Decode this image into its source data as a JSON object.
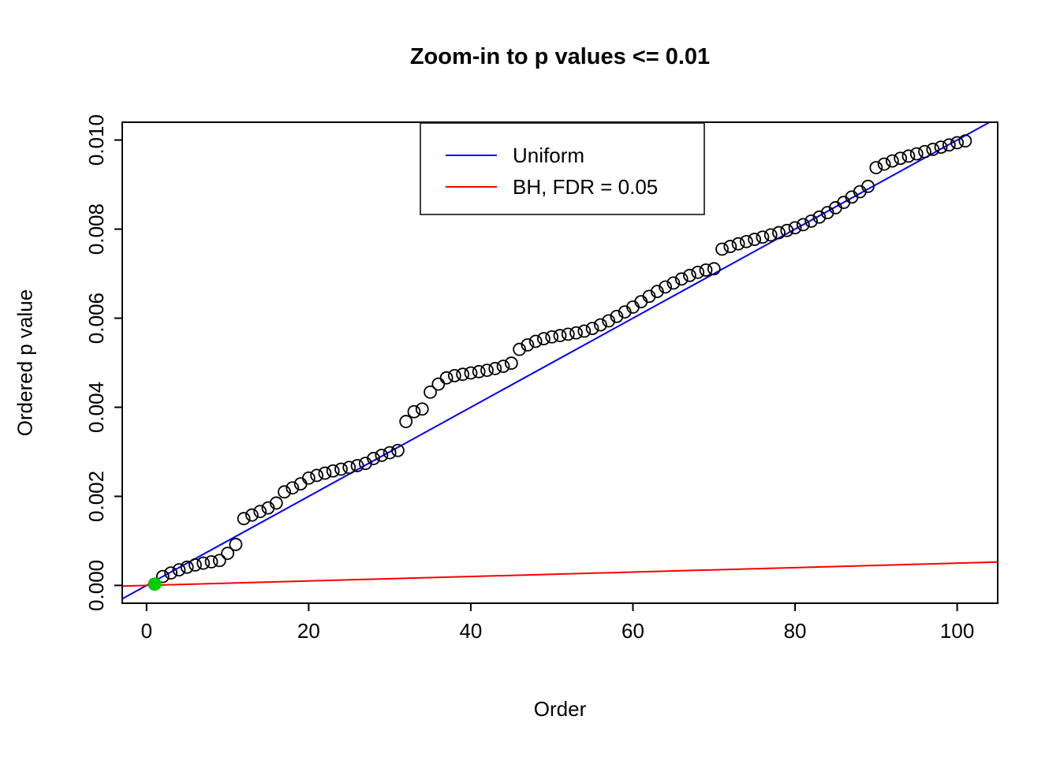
{
  "figure": {
    "background": "#FFFFFF"
  },
  "chart_data": {
    "type": "scatter",
    "title": "Zoom-in to p values <= 0.01",
    "xlabel": "Order",
    "ylabel": "Ordered p value",
    "xlim": [
      -3,
      105
    ],
    "ylim": [
      -0.0004,
      0.0104
    ],
    "grid": false,
    "x_ticks": {
      "values": [
        0,
        20,
        40,
        60,
        80,
        100
      ],
      "labels": [
        "0",
        "20",
        "40",
        "60",
        "80",
        "100"
      ]
    },
    "y_ticks": {
      "values": [
        0,
        0.002,
        0.004,
        0.006,
        0.008,
        0.01
      ],
      "labels": [
        "0.000",
        "0.002",
        "0.004",
        "0.006",
        "0.008",
        "0.010"
      ]
    },
    "series": [
      {
        "name": "ordered-p-values",
        "type": "scatter",
        "marker": "open-circle",
        "color": "#000000",
        "x": [
          1,
          2,
          3,
          4,
          5,
          6,
          7,
          8,
          9,
          10,
          11,
          12,
          13,
          14,
          15,
          16,
          17,
          18,
          19,
          20,
          21,
          22,
          23,
          24,
          25,
          26,
          27,
          28,
          29,
          30,
          31,
          32,
          33,
          34,
          35,
          36,
          37,
          38,
          39,
          40,
          41,
          42,
          43,
          44,
          45,
          46,
          47,
          48,
          49,
          50,
          51,
          52,
          53,
          54,
          55,
          56,
          57,
          58,
          59,
          60,
          61,
          62,
          63,
          64,
          65,
          66,
          67,
          68,
          69,
          70,
          71,
          72,
          73,
          74,
          75,
          76,
          77,
          78,
          79,
          80,
          81,
          82,
          83,
          84,
          85,
          86,
          87,
          88,
          89,
          90,
          91,
          92,
          93,
          94,
          95,
          96,
          97,
          98,
          99,
          100,
          101
        ],
        "y": [
          3e-05,
          0.0002,
          0.00028,
          0.00035,
          0.00041,
          0.00046,
          0.0005,
          0.00053,
          0.00056,
          0.00072,
          0.00092,
          0.0015,
          0.00158,
          0.00166,
          0.00174,
          0.00185,
          0.0021,
          0.00219,
          0.00228,
          0.00241,
          0.00247,
          0.00252,
          0.00257,
          0.00261,
          0.00265,
          0.00269,
          0.00274,
          0.00285,
          0.00292,
          0.00298,
          0.00303,
          0.00368,
          0.0039,
          0.00396,
          0.00434,
          0.00452,
          0.00466,
          0.00471,
          0.00474,
          0.00477,
          0.0048,
          0.00483,
          0.00487,
          0.00492,
          0.00499,
          0.0053,
          0.0054,
          0.00548,
          0.00554,
          0.00558,
          0.00561,
          0.00564,
          0.00567,
          0.00571,
          0.00577,
          0.00585,
          0.00594,
          0.00604,
          0.00614,
          0.00625,
          0.00637,
          0.00649,
          0.0066,
          0.0067,
          0.00679,
          0.00688,
          0.00696,
          0.00703,
          0.00708,
          0.00711,
          0.00755,
          0.00761,
          0.00767,
          0.00772,
          0.00777,
          0.00782,
          0.00787,
          0.00792,
          0.00797,
          0.00803,
          0.0081,
          0.00818,
          0.00827,
          0.00837,
          0.00848,
          0.0086,
          0.00872,
          0.00884,
          0.00896,
          0.00938,
          0.00946,
          0.00953,
          0.00959,
          0.00964,
          0.00969,
          0.00974,
          0.00979,
          0.00984,
          0.00989,
          0.00994,
          0.00998
        ]
      }
    ],
    "highlight_point": {
      "x": 1,
      "y": 3e-05,
      "color": "#00CC00"
    },
    "lines": [
      {
        "name": "Uniform",
        "color": "#0000FF",
        "slope": 0.0001,
        "intercept": 0
      },
      {
        "name": "BH, FDR = 0.05",
        "color": "#FF0000",
        "slope": 5e-06,
        "intercept": 0
      }
    ],
    "legend": {
      "position": "top-center",
      "entries": [
        {
          "label": "Uniform",
          "color": "#0000FF"
        },
        {
          "label": "BH, FDR = 0.05",
          "color": "#FF0000"
        }
      ]
    }
  }
}
